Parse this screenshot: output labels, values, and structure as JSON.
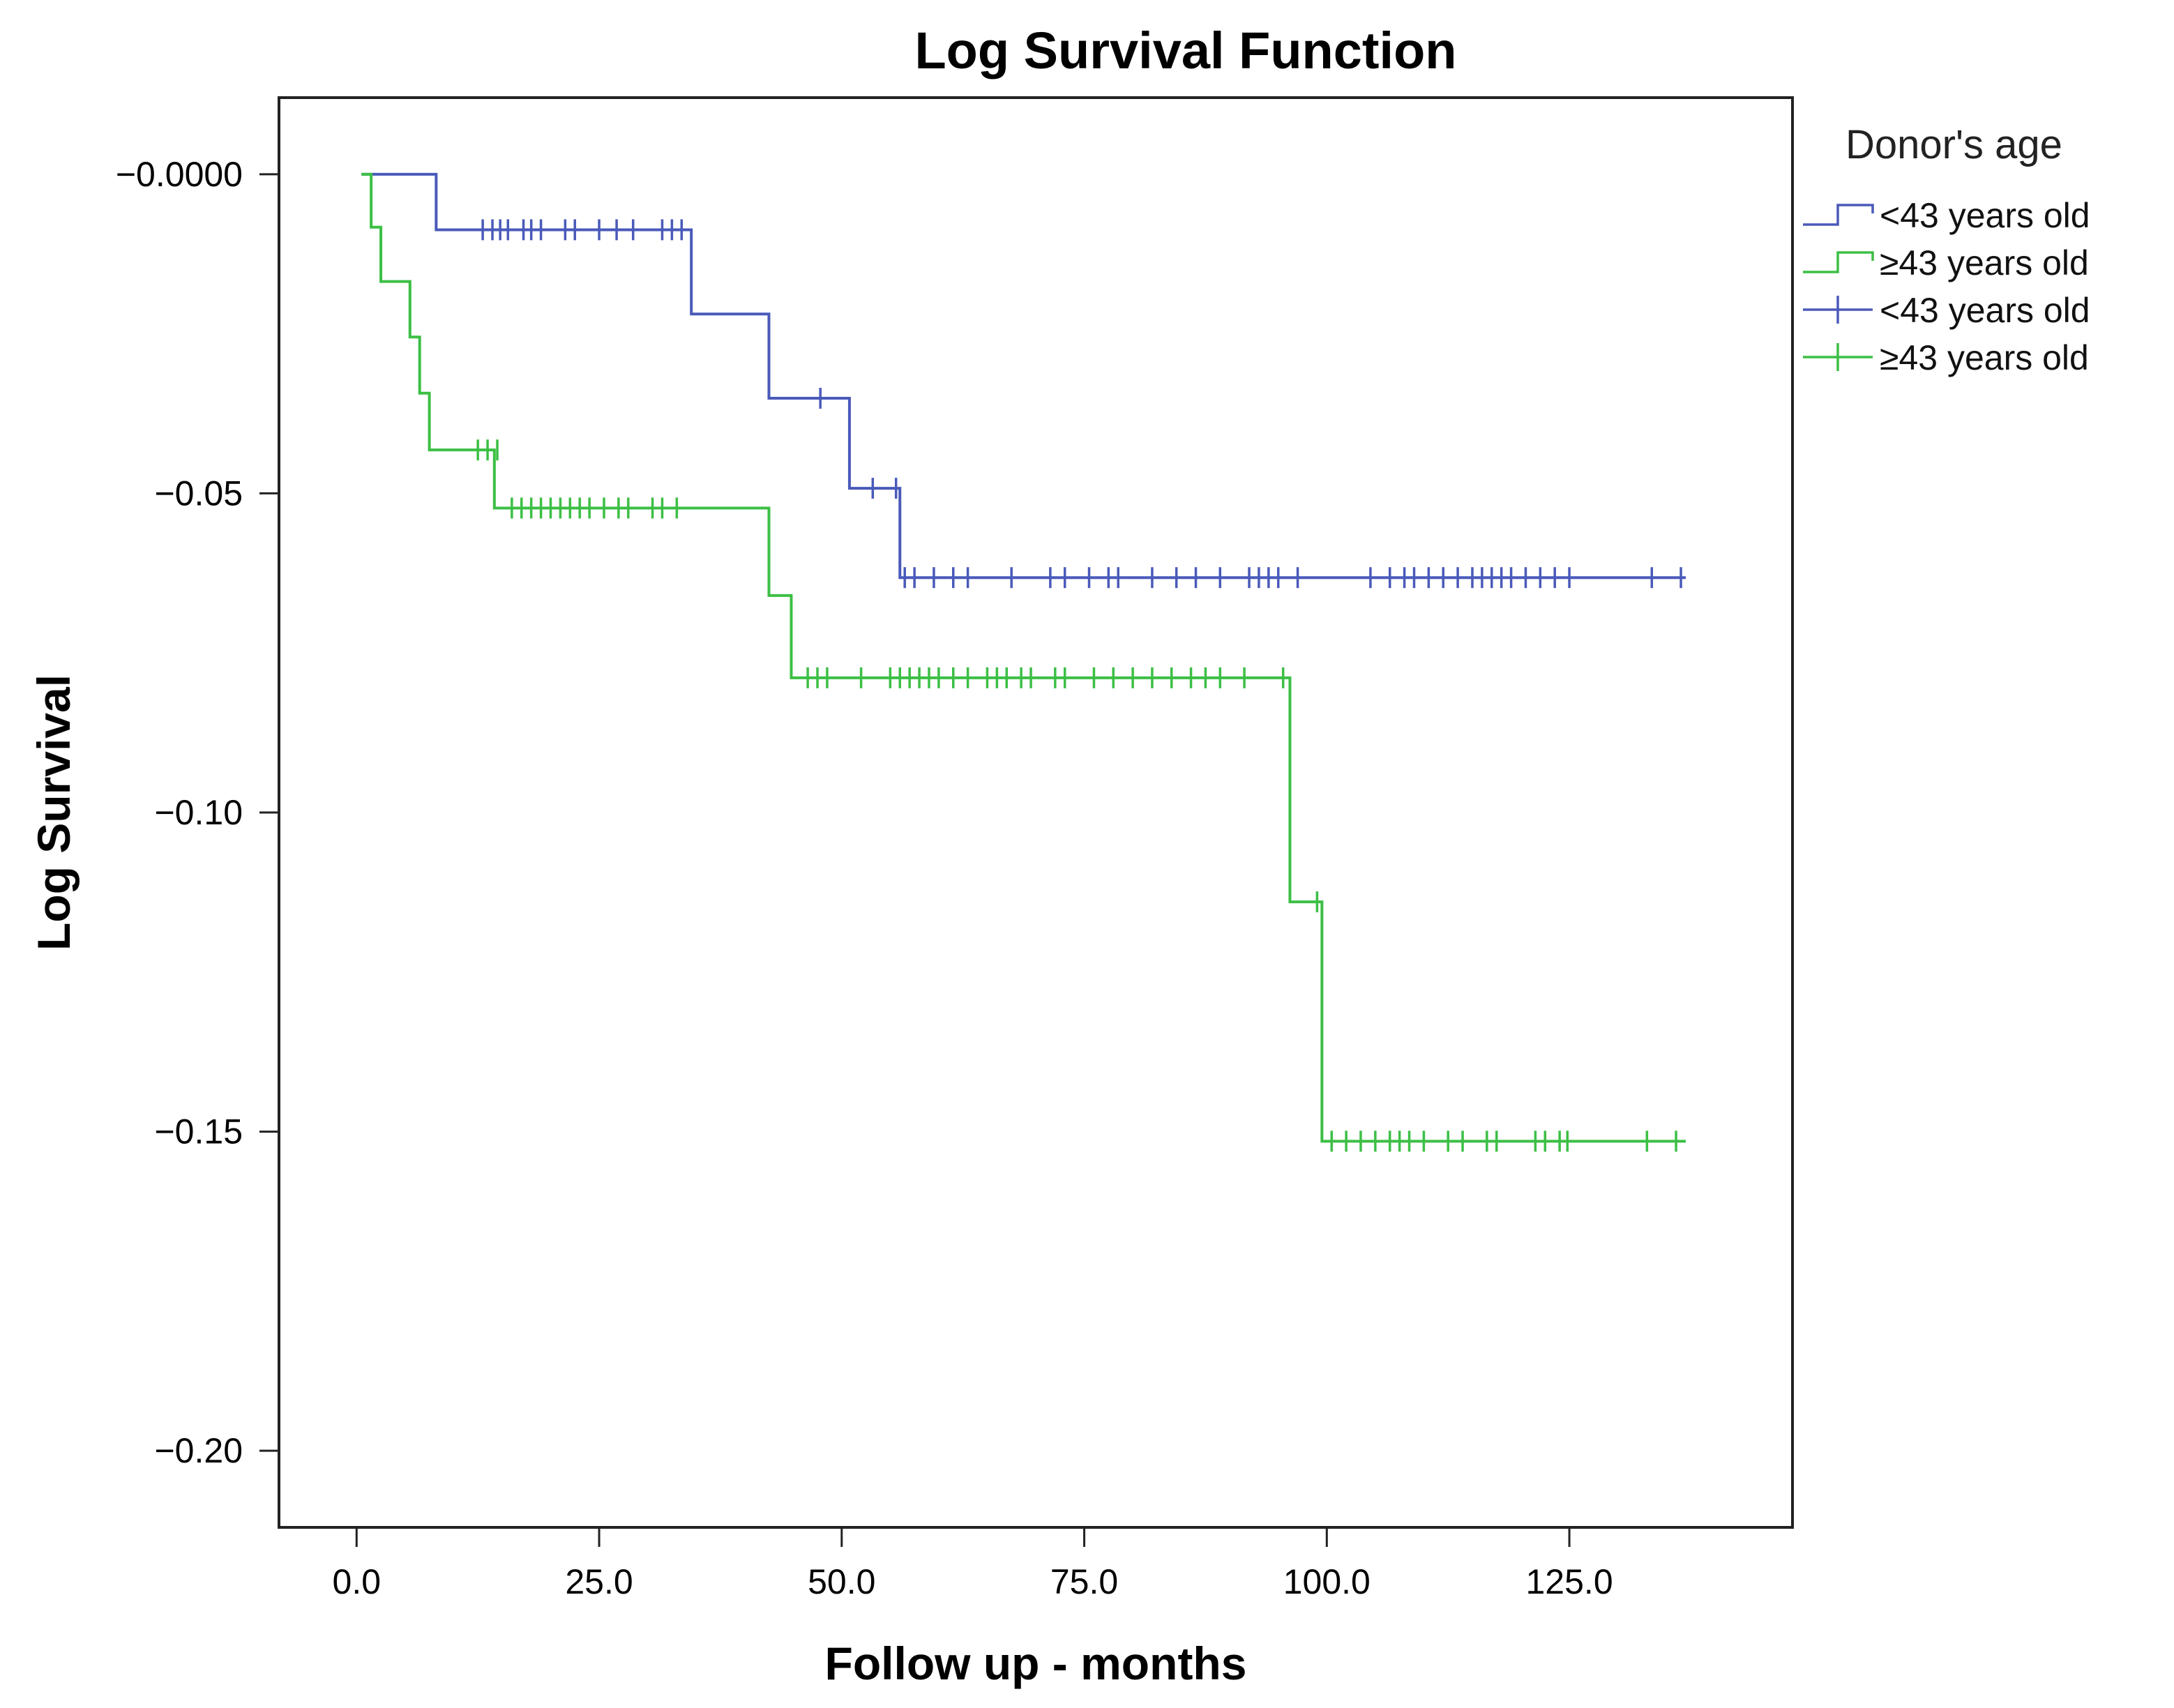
{
  "chart_data": {
    "type": "line",
    "subtype": "step (Kaplan-Meier log survival with censoring marks)",
    "title": "Log Survival Function",
    "xlabel": "Follow up - months",
    "ylabel": "Log Survival",
    "xlim": [
      -8,
      148
    ],
    "ylim": [
      -0.212,
      0.012
    ],
    "xticks": [
      0,
      25,
      50,
      75,
      100,
      125
    ],
    "xtick_labels": [
      "0.0",
      "25.0",
      "50.0",
      "75.0",
      "100.0",
      "125.0"
    ],
    "yticks": [
      0,
      -0.05,
      -0.1,
      -0.15,
      -0.2
    ],
    "ytick_labels": [
      "−0.0000",
      "−0.05",
      "−0.10",
      "−0.15",
      "−0.20"
    ],
    "grid": false,
    "legend": {
      "title": "Donor's age",
      "placement": "right",
      "entries": [
        {
          "label": "<43 years old",
          "kind": "line",
          "series": 0
        },
        {
          "label": "≥43 years old",
          "kind": "line",
          "series": 1
        },
        {
          "label": "<43 years old",
          "kind": "censor",
          "series": 0
        },
        {
          "label": "≥43 years old",
          "kind": "censor",
          "series": 1
        }
      ]
    },
    "series": [
      {
        "name": "<43 years old",
        "color": "#4a5aba",
        "steps": [
          {
            "x": 0.5,
            "y": 0
          },
          {
            "x": 8.2,
            "y": -0.0087
          },
          {
            "x": 34.5,
            "y": -0.0219
          },
          {
            "x": 42.5,
            "y": -0.0351
          },
          {
            "x": 50.8,
            "y": -0.0492
          },
          {
            "x": 56.0,
            "y": -0.0632
          }
        ],
        "end_x": 137,
        "censored": [
          {
            "x": 13.0,
            "y": -0.0087
          },
          {
            "x": 14.0,
            "y": -0.0087
          },
          {
            "x": 14.8,
            "y": -0.0087
          },
          {
            "x": 15.6,
            "y": -0.0087
          },
          {
            "x": 17.2,
            "y": -0.0087
          },
          {
            "x": 18.0,
            "y": -0.0087
          },
          {
            "x": 19.0,
            "y": -0.0087
          },
          {
            "x": 21.5,
            "y": -0.0087
          },
          {
            "x": 22.5,
            "y": -0.0087
          },
          {
            "x": 25.0,
            "y": -0.0087
          },
          {
            "x": 26.8,
            "y": -0.0087
          },
          {
            "x": 28.5,
            "y": -0.0087
          },
          {
            "x": 31.5,
            "y": -0.0087
          },
          {
            "x": 32.5,
            "y": -0.0087
          },
          {
            "x": 33.5,
            "y": -0.0087
          },
          {
            "x": 47.8,
            "y": -0.0351
          },
          {
            "x": 53.2,
            "y": -0.0492
          },
          {
            "x": 55.6,
            "y": -0.0492
          },
          {
            "x": 56.5,
            "y": -0.0632
          },
          {
            "x": 57.5,
            "y": -0.0632
          },
          {
            "x": 59.5,
            "y": -0.0632
          },
          {
            "x": 61.5,
            "y": -0.0632
          },
          {
            "x": 63.0,
            "y": -0.0632
          },
          {
            "x": 67.5,
            "y": -0.0632
          },
          {
            "x": 71.5,
            "y": -0.0632
          },
          {
            "x": 73.0,
            "y": -0.0632
          },
          {
            "x": 75.5,
            "y": -0.0632
          },
          {
            "x": 77.5,
            "y": -0.0632
          },
          {
            "x": 78.5,
            "y": -0.0632
          },
          {
            "x": 82.0,
            "y": -0.0632
          },
          {
            "x": 84.5,
            "y": -0.0632
          },
          {
            "x": 86.5,
            "y": -0.0632
          },
          {
            "x": 89.0,
            "y": -0.0632
          },
          {
            "x": 92.0,
            "y": -0.0632
          },
          {
            "x": 93.0,
            "y": -0.0632
          },
          {
            "x": 94.0,
            "y": -0.0632
          },
          {
            "x": 95.0,
            "y": -0.0632
          },
          {
            "x": 97.0,
            "y": -0.0632
          },
          {
            "x": 104.5,
            "y": -0.0632
          },
          {
            "x": 106.5,
            "y": -0.0632
          },
          {
            "x": 108.0,
            "y": -0.0632
          },
          {
            "x": 109.0,
            "y": -0.0632
          },
          {
            "x": 110.5,
            "y": -0.0632
          },
          {
            "x": 112.0,
            "y": -0.0632
          },
          {
            "x": 113.5,
            "y": -0.0632
          },
          {
            "x": 115.0,
            "y": -0.0632
          },
          {
            "x": 116.0,
            "y": -0.0632
          },
          {
            "x": 117.0,
            "y": -0.0632
          },
          {
            "x": 118.0,
            "y": -0.0632
          },
          {
            "x": 119.0,
            "y": -0.0632
          },
          {
            "x": 120.5,
            "y": -0.0632
          },
          {
            "x": 122.0,
            "y": -0.0632
          },
          {
            "x": 123.5,
            "y": -0.0632
          },
          {
            "x": 125.0,
            "y": -0.0632
          },
          {
            "x": 133.5,
            "y": -0.0632
          },
          {
            "x": 136.5,
            "y": -0.0632
          }
        ]
      },
      {
        "name": "≥43 years old",
        "color": "#3cbf45",
        "steps": [
          {
            "x": 0.5,
            "y": 0
          },
          {
            "x": 1.5,
            "y": -0.0083
          },
          {
            "x": 2.5,
            "y": -0.0168
          },
          {
            "x": 5.5,
            "y": -0.0255
          },
          {
            "x": 6.5,
            "y": -0.0343
          },
          {
            "x": 7.5,
            "y": -0.0432
          },
          {
            "x": 14.2,
            "y": -0.0523
          },
          {
            "x": 42.5,
            "y": -0.066
          },
          {
            "x": 44.8,
            "y": -0.0789
          },
          {
            "x": 96.2,
            "y": -0.114
          },
          {
            "x": 99.5,
            "y": -0.1515
          }
        ],
        "end_x": 137,
        "censored": [
          {
            "x": 12.5,
            "y": -0.0432
          },
          {
            "x": 13.5,
            "y": -0.0432
          },
          {
            "x": 14.5,
            "y": -0.0432
          },
          {
            "x": 16.0,
            "y": -0.0523
          },
          {
            "x": 17.0,
            "y": -0.0523
          },
          {
            "x": 18.0,
            "y": -0.0523
          },
          {
            "x": 19.0,
            "y": -0.0523
          },
          {
            "x": 20.0,
            "y": -0.0523
          },
          {
            "x": 21.0,
            "y": -0.0523
          },
          {
            "x": 22.0,
            "y": -0.0523
          },
          {
            "x": 23.0,
            "y": -0.0523
          },
          {
            "x": 24.0,
            "y": -0.0523
          },
          {
            "x": 25.5,
            "y": -0.0523
          },
          {
            "x": 27.0,
            "y": -0.0523
          },
          {
            "x": 28.0,
            "y": -0.0523
          },
          {
            "x": 30.5,
            "y": -0.0523
          },
          {
            "x": 31.5,
            "y": -0.0523
          },
          {
            "x": 33.0,
            "y": -0.0523
          },
          {
            "x": 46.5,
            "y": -0.0789
          },
          {
            "x": 47.5,
            "y": -0.0789
          },
          {
            "x": 48.5,
            "y": -0.0789
          },
          {
            "x": 52.0,
            "y": -0.0789
          },
          {
            "x": 55.0,
            "y": -0.0789
          },
          {
            "x": 56.0,
            "y": -0.0789
          },
          {
            "x": 57.0,
            "y": -0.0789
          },
          {
            "x": 58.0,
            "y": -0.0789
          },
          {
            "x": 59.0,
            "y": -0.0789
          },
          {
            "x": 60.0,
            "y": -0.0789
          },
          {
            "x": 61.5,
            "y": -0.0789
          },
          {
            "x": 63.0,
            "y": -0.0789
          },
          {
            "x": 65.0,
            "y": -0.0789
          },
          {
            "x": 66.0,
            "y": -0.0789
          },
          {
            "x": 67.0,
            "y": -0.0789
          },
          {
            "x": 68.5,
            "y": -0.0789
          },
          {
            "x": 69.5,
            "y": -0.0789
          },
          {
            "x": 72.0,
            "y": -0.0789
          },
          {
            "x": 73.0,
            "y": -0.0789
          },
          {
            "x": 76.0,
            "y": -0.0789
          },
          {
            "x": 78.0,
            "y": -0.0789
          },
          {
            "x": 80.0,
            "y": -0.0789
          },
          {
            "x": 82.0,
            "y": -0.0789
          },
          {
            "x": 84.0,
            "y": -0.0789
          },
          {
            "x": 86.0,
            "y": -0.0789
          },
          {
            "x": 87.5,
            "y": -0.0789
          },
          {
            "x": 89.0,
            "y": -0.0789
          },
          {
            "x": 91.5,
            "y": -0.0789
          },
          {
            "x": 95.5,
            "y": -0.0789
          },
          {
            "x": 99.0,
            "y": -0.114
          },
          {
            "x": 100.5,
            "y": -0.1515
          },
          {
            "x": 102.0,
            "y": -0.1515
          },
          {
            "x": 103.5,
            "y": -0.1515
          },
          {
            "x": 105.0,
            "y": -0.1515
          },
          {
            "x": 106.5,
            "y": -0.1515
          },
          {
            "x": 107.5,
            "y": -0.1515
          },
          {
            "x": 108.5,
            "y": -0.1515
          },
          {
            "x": 110.0,
            "y": -0.1515
          },
          {
            "x": 112.5,
            "y": -0.1515
          },
          {
            "x": 114.0,
            "y": -0.1515
          },
          {
            "x": 116.5,
            "y": -0.1515
          },
          {
            "x": 117.5,
            "y": -0.1515
          },
          {
            "x": 121.5,
            "y": -0.1515
          },
          {
            "x": 122.5,
            "y": -0.1515
          },
          {
            "x": 124.0,
            "y": -0.1515
          },
          {
            "x": 124.8,
            "y": -0.1515
          },
          {
            "x": 133.0,
            "y": -0.1515
          },
          {
            "x": 136.0,
            "y": -0.1515
          }
        ]
      }
    ]
  }
}
